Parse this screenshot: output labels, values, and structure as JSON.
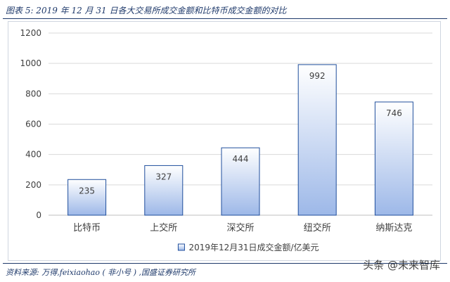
{
  "header": {
    "title": "图表 5:  2019 年 12 月 31 日各大交易所成交金额和比特币成交金额的对比"
  },
  "footer": {
    "source": "资料来源:  万得,feixiaohao ( 非小号 ) ,国盛证券研究所"
  },
  "watermark": {
    "text": "头条 @未来智库"
  },
  "colors": {
    "rule": "#1f3a6b",
    "bar_top": "#ffffff",
    "bar_bottom": "#9db8e8",
    "bar_stroke": "#1f4e9c",
    "grid": "#d9d9d9",
    "text": "#404040"
  },
  "chart_data": {
    "type": "bar",
    "categories": [
      "比特币",
      "上交所",
      "深交所",
      "纽交所",
      "纳斯达克"
    ],
    "series": [
      {
        "name": "2019年12月31日成交金额/亿美元",
        "values": [
          235,
          327,
          444,
          992,
          746
        ]
      }
    ],
    "ylim": [
      0,
      1200
    ],
    "yticks": [
      0,
      200,
      400,
      600,
      800,
      1000,
      1200
    ],
    "grid": true,
    "data_labels": true,
    "legend_position": "bottom"
  }
}
